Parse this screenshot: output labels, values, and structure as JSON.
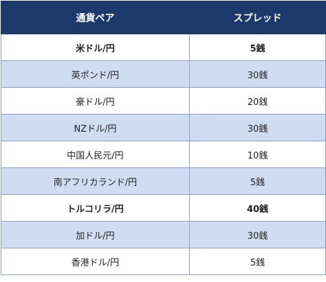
{
  "table": {
    "headers": [
      "通貨ペア",
      "スプレッド"
    ],
    "rows": [
      {
        "pair": "米ドル/円",
        "spread": "5銭",
        "bold": true,
        "shade": "plain"
      },
      {
        "pair": "英ポンド/円",
        "spread": "30銭",
        "bold": false,
        "shade": "alt"
      },
      {
        "pair": "豪ドル/円",
        "spread": "20銭",
        "bold": false,
        "shade": "plain"
      },
      {
        "pair": "NZドル/円",
        "spread": "30銭",
        "bold": false,
        "shade": "alt"
      },
      {
        "pair": "中国人民元/円",
        "spread": "10銭",
        "bold": false,
        "shade": "plain"
      },
      {
        "pair": "南アフリカランド/円",
        "spread": "5銭",
        "bold": false,
        "shade": "alt"
      },
      {
        "pair": "トルコリラ/円",
        "spread": "40銭",
        "bold": true,
        "shade": "plain"
      },
      {
        "pair": "加ドル/円",
        "spread": "30銭",
        "bold": false,
        "shade": "alt"
      },
      {
        "pair": "香港ドル/円",
        "spread": "5銭",
        "bold": false,
        "shade": "plain"
      }
    ]
  },
  "colors": {
    "header_bg": "#1b3a6b",
    "header_text": "#ffffff",
    "alt_row_bg": "#cfdcf1",
    "border": "#8a9fc0"
  }
}
